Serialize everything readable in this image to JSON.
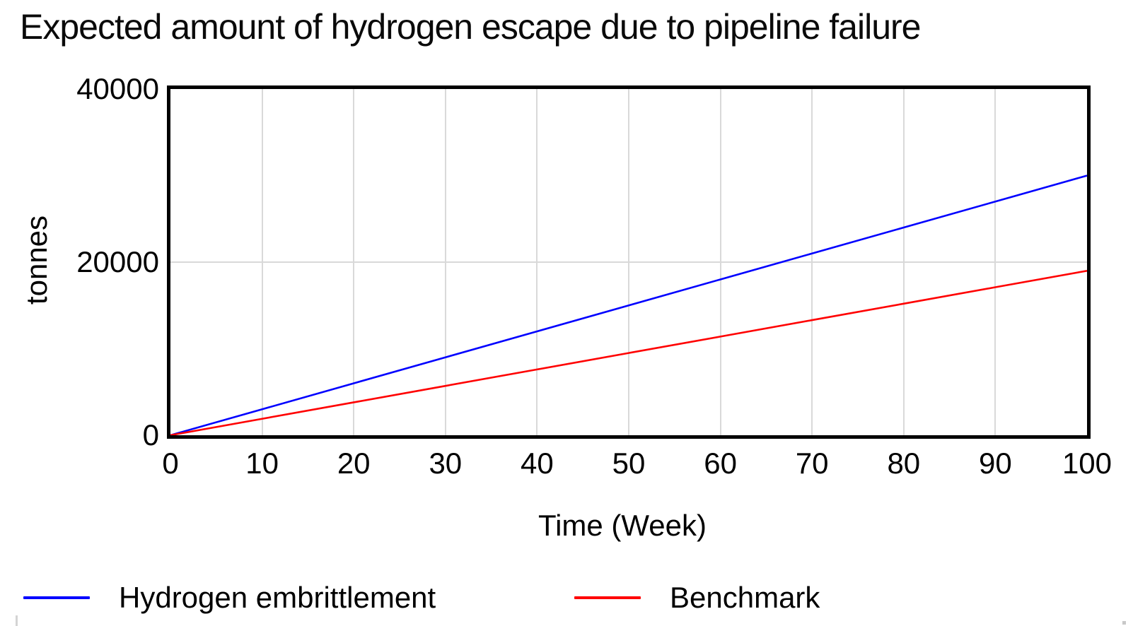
{
  "title": "Expected amount of hydrogen escape due to pipeline failure",
  "chart_data": {
    "type": "line",
    "title": "Expected amount of hydrogen escape due to pipeline failure",
    "xlabel": "Time (Week)",
    "ylabel": "tonnes",
    "xlim": [
      0,
      100
    ],
    "ylim": [
      0,
      40000
    ],
    "x_ticks": [
      0,
      10,
      20,
      30,
      40,
      50,
      60,
      70,
      80,
      90,
      100
    ],
    "y_ticks": [
      0,
      20000,
      40000
    ],
    "grid": true,
    "legend_position": "bottom",
    "x": [
      0,
      10,
      20,
      30,
      40,
      50,
      60,
      70,
      80,
      90,
      100
    ],
    "series": [
      {
        "name": "Hydrogen embrittlement",
        "color": "#0000ff",
        "values": [
          0,
          3000,
          6000,
          9000,
          12000,
          15000,
          18000,
          21000,
          24000,
          27000,
          30000
        ]
      },
      {
        "name": "Benchmark",
        "color": "#ff0000",
        "values": [
          0,
          1900,
          3800,
          5700,
          7600,
          9500,
          11400,
          13300,
          15200,
          17100,
          19000
        ]
      }
    ]
  },
  "colors": {
    "gridline": "#d9d9d9",
    "frame": "#000000",
    "background": "#ffffff",
    "text": "#000000"
  }
}
